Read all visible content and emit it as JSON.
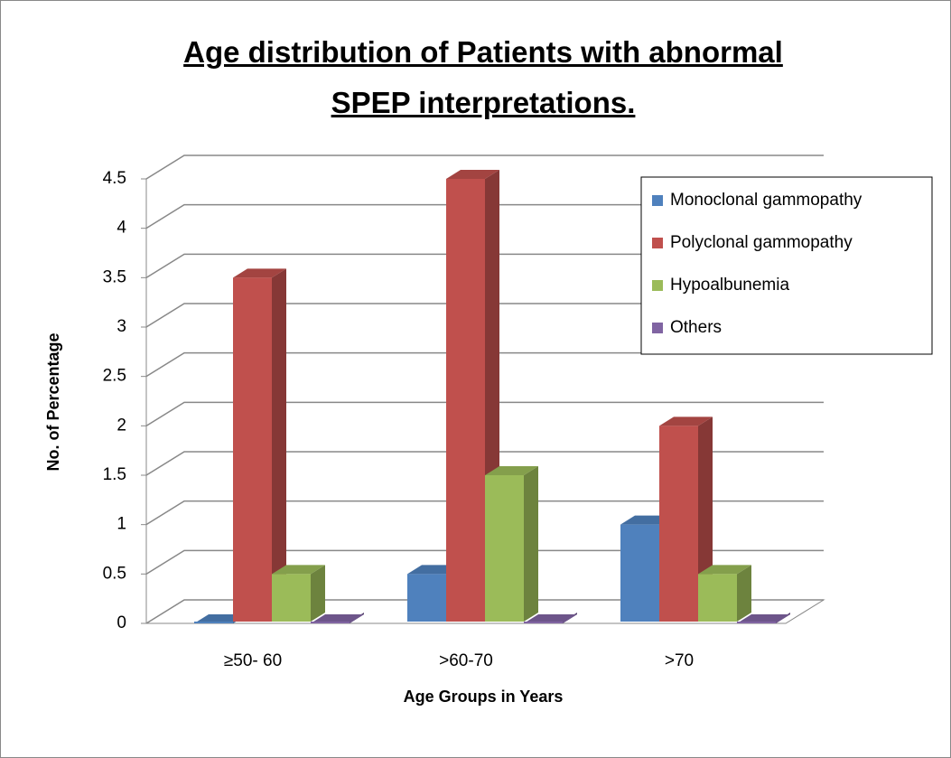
{
  "chart_data": {
    "type": "bar3d",
    "title": "Age distribution of Patients with abnormal SPEP interpretations.",
    "xlabel": "Age Groups in Years",
    "ylabel": "No. of Percentage",
    "categories": [
      "≥50- 60",
      ">60-70",
      ">70"
    ],
    "series": [
      {
        "name": "Monoclonal gammopathy",
        "color": "#4f81bd",
        "values": [
          0,
          0.5,
          1
        ]
      },
      {
        "name": "Polyclonal gammopathy",
        "color": "#c0504d",
        "values": [
          3.5,
          4.5,
          2
        ]
      },
      {
        "name": "Hypoalbunemia",
        "color": "#9bbb59",
        "values": [
          0.5,
          1.5,
          0.5
        ]
      },
      {
        "name": "Others",
        "color": "#8064a2",
        "values": [
          0,
          0,
          0
        ]
      }
    ],
    "ylim": [
      0,
      4.5
    ],
    "yticks": [
      0,
      0.5,
      1,
      1.5,
      2,
      2.5,
      3,
      3.5,
      4,
      4.5
    ],
    "grid": true,
    "legend": "top-right"
  }
}
